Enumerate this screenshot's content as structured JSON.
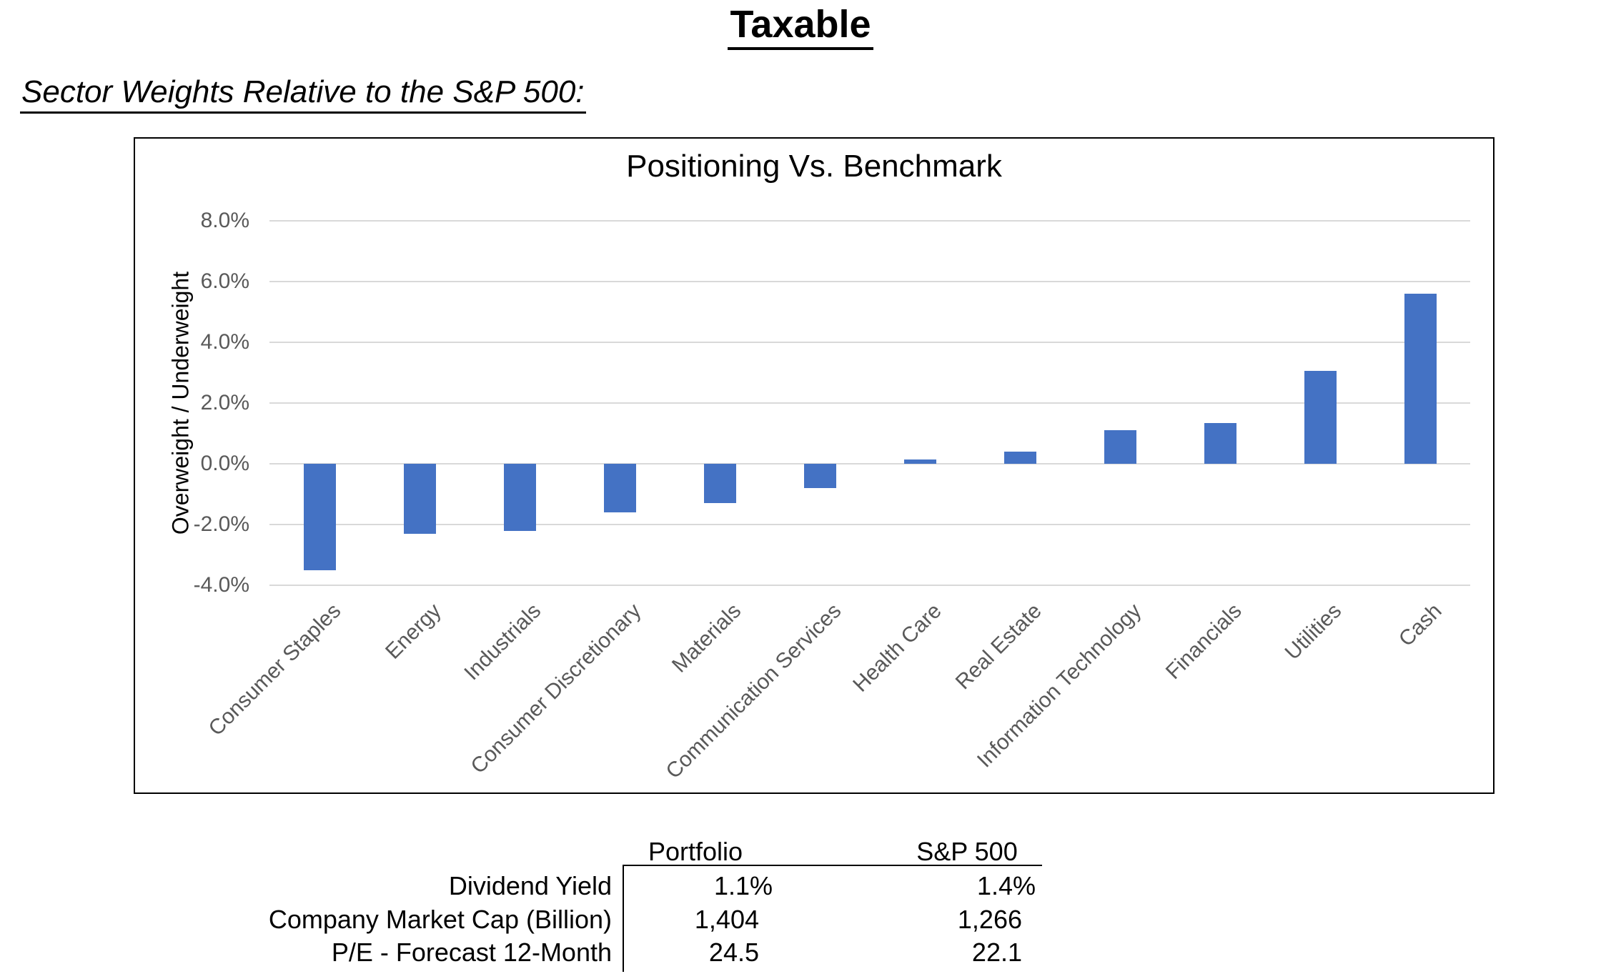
{
  "page": {
    "title": "Taxable",
    "subtitle": "Sector Weights Relative to the S&P 500:"
  },
  "chart_data": [
    {
      "type": "bar",
      "title": "Positioning Vs. Benchmark",
      "xlabel": "",
      "ylabel": "Overweight / Underweight",
      "categories": [
        "Consumer Staples",
        "Energy",
        "Industrials",
        "Consumer Discretionary",
        "Materials",
        "Communication Services",
        "Health Care",
        "Real Estate",
        "Information Technology",
        "Financials",
        "Utilities",
        "Cash"
      ],
      "values": [
        -3.5,
        -2.3,
        -2.2,
        -1.6,
        -1.3,
        -0.8,
        0.15,
        0.4,
        1.1,
        1.35,
        3.05,
        5.6
      ],
      "value_unit": "percent",
      "ylim": [
        -4,
        8
      ],
      "yticks": [
        8,
        6,
        4,
        2,
        0,
        -2,
        -4
      ],
      "ytick_labels": [
        "8.0%",
        "6.0%",
        "4.0%",
        "2.0%",
        "0.0%",
        "-2.0%",
        "-4.0%"
      ],
      "grid": true,
      "legend": "none",
      "bar_color": "#4472C4",
      "gridline_color": "#D9D9D9",
      "axis_text_color": "#595959"
    },
    {
      "type": "table",
      "col_headers": [
        "Portfolio",
        "S&P 500"
      ],
      "row_headers": [
        "Dividend Yield",
        "Company Market Cap (Billion)",
        "P/E - Forecast 12-Month"
      ],
      "rows": [
        [
          "1.1%",
          "1.4%"
        ],
        [
          "1,404",
          "1,266"
        ],
        [
          "24.5",
          "22.1"
        ]
      ]
    }
  ]
}
